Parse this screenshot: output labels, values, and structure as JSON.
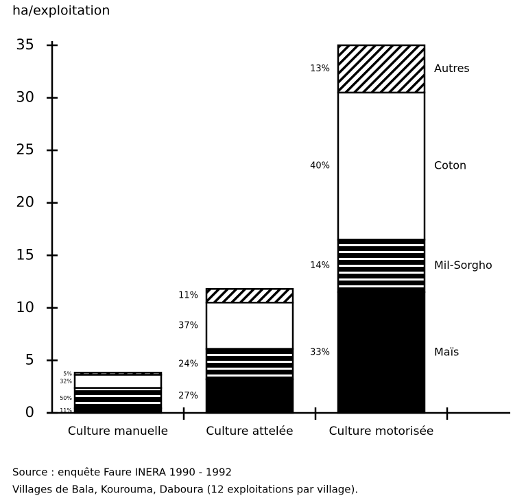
{
  "chart_data": {
    "type": "stacked_bar",
    "y_axis_label": "ha/exploitation",
    "categories": [
      "Culture manuelle",
      "Culture attelée",
      "Culture motorisée"
    ],
    "series": [
      {
        "name": "Maïs",
        "color": "#000000",
        "pattern": "solid",
        "values": [
          0.43,
          3.2,
          11.5
        ],
        "labels": [
          "11%",
          "27%",
          "33%"
        ]
      },
      {
        "name": "Mil-Sorgho",
        "color": "#000000",
        "pattern": "stripes",
        "values": [
          1.95,
          2.9,
          5.0
        ],
        "labels": [
          "50%",
          "24%",
          "14%"
        ]
      },
      {
        "name": "Coton",
        "color": "#ffffff",
        "pattern": "solid",
        "values": [
          1.25,
          4.4,
          14.0
        ],
        "labels": [
          "32%",
          "37%",
          "40%"
        ]
      },
      {
        "name": "Autres",
        "color": "#000000",
        "pattern": "hatch",
        "values": [
          0.2,
          1.3,
          4.5
        ],
        "labels": [
          "5%",
          "11%",
          "13%"
        ]
      }
    ],
    "ylim": [
      0,
      35
    ],
    "yticks": [
      0,
      5,
      10,
      15,
      20,
      25,
      30,
      35
    ],
    "source": [
      "Source : enquête Faure INERA 1990 - 1992",
      "Villages  de Bala, Kourouma, Daboura (12 exploitations par village)."
    ]
  }
}
